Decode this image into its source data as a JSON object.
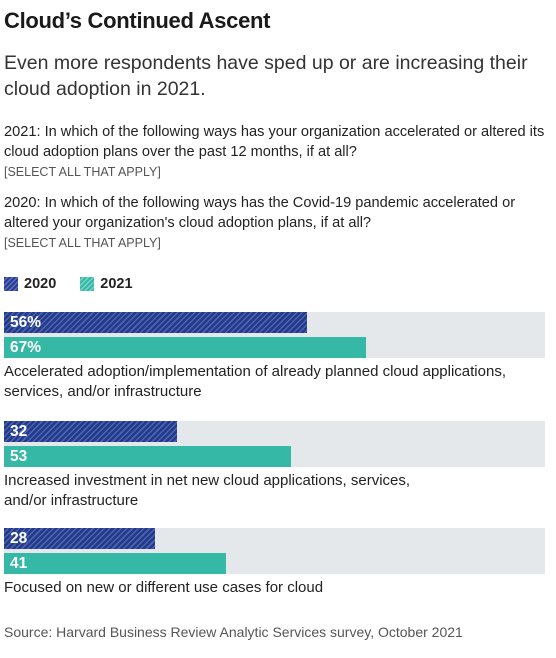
{
  "title": "Cloud’s Continued Ascent",
  "subtitle": "Even more respondents have sped up or are increasing their cloud adoption in 2021.",
  "questions": {
    "q2021": "2021: In which of the following ways has your organization accelerated or altered its cloud adoption plans over the past 12 months, if at all?",
    "q2021_note": "[SELECT ALL THAT APPLY]",
    "q2020": "2020: In which of the following ways has the Covid-19 pandemic accelerated or altered your organization's cloud adoption plans, if at all?",
    "q2020_note": "[SELECT ALL THAT APPLY]"
  },
  "source": "Source: Harvard Business Review Analytic Services survey, October 2021",
  "chart_data": {
    "type": "bar",
    "orientation": "horizontal",
    "xlim": [
      0,
      100
    ],
    "grid": false,
    "legend_position": "top-left",
    "categories": [
      "Accelerated adoption/implementation of already planned cloud applications, services, and/or infrastructure",
      "Increased investment in net new cloud applications, services, and/or infrastructure",
      "Focused on new or different use cases for cloud"
    ],
    "series": [
      {
        "name": "2020",
        "values": [
          56,
          32,
          28
        ],
        "labels": [
          "56%",
          "32",
          "28"
        ],
        "color": "#2b3f8e"
      },
      {
        "name": "2021",
        "values": [
          67,
          53,
          41
        ],
        "labels": [
          "67%",
          "53",
          "41"
        ],
        "color": "#35b8a6"
      }
    ]
  }
}
